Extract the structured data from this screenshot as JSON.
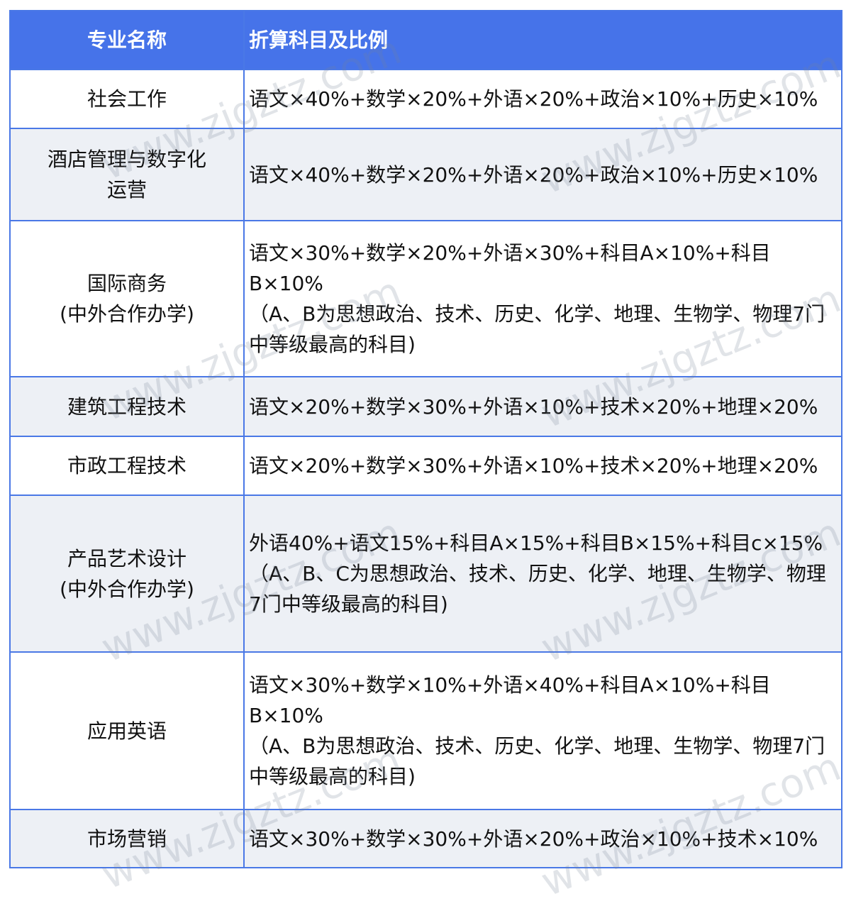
{
  "header": {
    "col1": "专业名称",
    "col2": "折算科目及比例"
  },
  "rows": [
    {
      "major": "社会工作",
      "formula": "语文×40%+数学×20%+外语×20%+政治×10%+历史×10%"
    },
    {
      "major": "酒店管理与数字化运营",
      "formula": "语文×40%+数学×20%+外语×20%+政治×10%+历史×10%"
    },
    {
      "major": "国际商务\n(中外合作办学)",
      "formula": "语文×30%+数学×20%+外语×30%+科目A×10%+科目B×10%\n（A、B为思想政治、技术、历史、化学、地理、生物学、物理7门中等级最高的科目)"
    },
    {
      "major": "建筑工程技术",
      "formula": "语文×20%+数学×30%+外语×10%+技术×20%+地理×20%"
    },
    {
      "major": "市政工程技术",
      "formula": "语文×20%+数学×30%+外语×10%+技术×20%+地理×20%"
    },
    {
      "major": "产品艺术设计\n(中外合作办学)",
      "formula": "外语40%+语文15%+科目A×15%+科目B×15%+科目c×15%\n（A、B、C为思想政治、技术、历史、化学、地理、生物学、物理7门中等级最高的科目)"
    },
    {
      "major": "应用英语",
      "formula": "语文×30%+数学×10%+外语×40%+科目A×10%+科目B×10%\n（A、B为思想政治、技术、历史、化学、地理、生物学、物理7门中等级最高的科目)"
    },
    {
      "major": "市场营销",
      "formula": "语文×30%+数学×30%+外语×20%+政治×10%+技术×10%"
    }
  ],
  "watermark": "www.zjgztz.com",
  "colors": {
    "header_bg": "#4673e9",
    "border": "#4a78e6",
    "alt_row": "#edf0f5"
  }
}
